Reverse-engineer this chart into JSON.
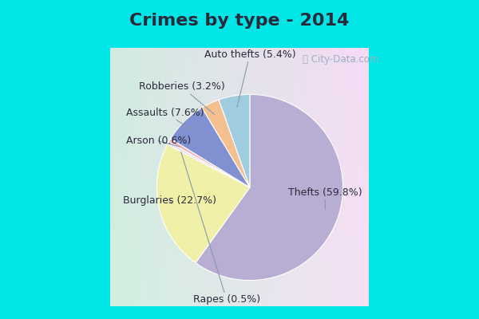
{
  "title": "Crimes by type - 2014",
  "slices": [
    {
      "label": "Thefts",
      "pct": 59.8,
      "color": "#b8aed4"
    },
    {
      "label": "Burglaries",
      "pct": 22.7,
      "color": "#f0f0a8"
    },
    {
      "label": "Rapes",
      "pct": 0.5,
      "color": "#e8e0f0"
    },
    {
      "label": "Arson",
      "pct": 0.6,
      "color": "#f0b0b8"
    },
    {
      "label": "Assaults",
      "pct": 7.6,
      "color": "#8090d0"
    },
    {
      "label": "Robberies",
      "pct": 3.2,
      "color": "#f4c090"
    },
    {
      "label": "Auto thefts",
      "pct": 5.4,
      "color": "#a0cce0"
    }
  ],
  "title_color": "#2a2a3a",
  "title_fontsize": 16,
  "label_fontsize": 9,
  "top_bg": "#00e5e5",
  "watermark": "City-Data.com"
}
